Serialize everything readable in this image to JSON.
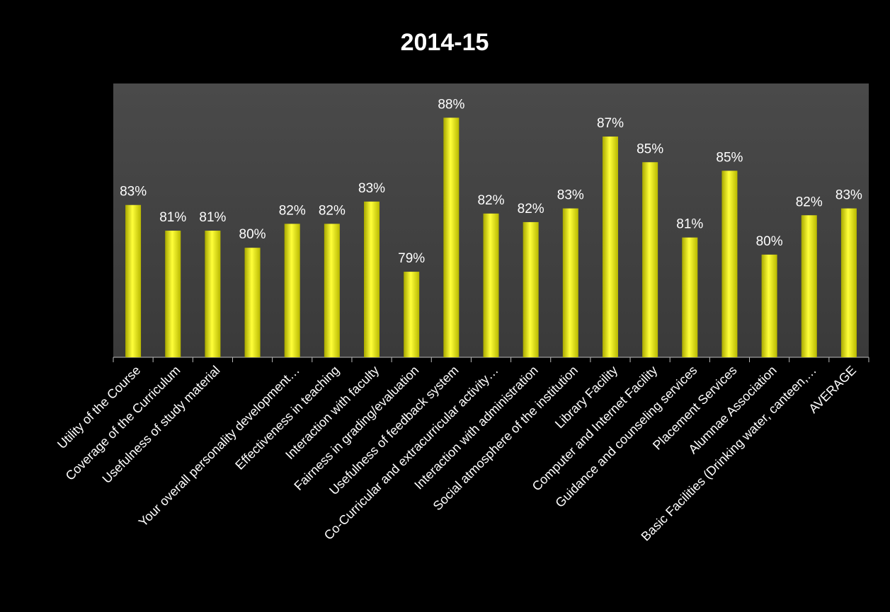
{
  "chart_data": {
    "type": "bar",
    "title": "2014-15",
    "categories": [
      "Utility of  the Course",
      "Coverage of the Curriculum",
      "Usefulness of study material",
      null,
      "Your overall personality development…",
      "Effectiveness  in teaching",
      "Interaction with faculty",
      "Fairness in grading/evaluation",
      "Usefulness of feedback system",
      "Co-Curricular and extracurricular activity…",
      "Interaction with administration",
      "Social atmosphere of the institution",
      "Library Facility",
      "Computer and Internet Facility",
      "Guidance and counseling services",
      "Placement Services",
      "Alumnae  Association",
      "Basic Facilities (Drinking water, canteen,…",
      "AVERAGE"
    ],
    "values": [
      82.9,
      81.4,
      81.4,
      80.4,
      81.8,
      81.8,
      83.1,
      79.0,
      88.0,
      82.4,
      81.9,
      82.7,
      86.9,
      85.4,
      81.0,
      84.9,
      80.0,
      82.3,
      82.7
    ],
    "value_labels": [
      "83%",
      "81%",
      "81%",
      "80%",
      "82%",
      "82%",
      "83%",
      "79%",
      "88%",
      "82%",
      "82%",
      "83%",
      "87%",
      "85%",
      "81%",
      "85%",
      "80%",
      "82%",
      "83%"
    ],
    "color": "#ffff00",
    "ylim": [
      74,
      90
    ]
  }
}
